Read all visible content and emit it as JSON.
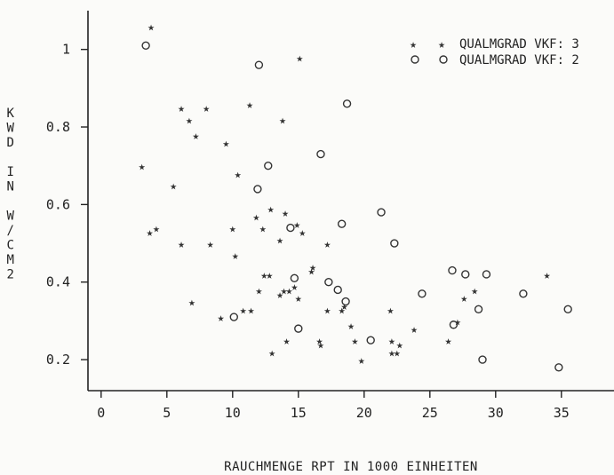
{
  "chart_data": {
    "type": "scatter",
    "xlabel": "RAUCHMENGE RPT IN 1000 EINHEITEN",
    "ylabel": [
      "K",
      "W",
      "D",
      "",
      "I",
      "N",
      "",
      "W",
      "/",
      "C",
      "M",
      "2"
    ],
    "xlim": [
      -1,
      39
    ],
    "ylim": [
      0.12,
      1.1
    ],
    "xticks": [
      0,
      5,
      10,
      15,
      20,
      25,
      30,
      35
    ],
    "xtick_labels": [
      "0",
      "5",
      "10",
      "15",
      "20",
      "25",
      "30",
      "35"
    ],
    "yticks": [
      0.2,
      0.4,
      0.6,
      0.8,
      1.0
    ],
    "ytick_labels": [
      "0.2",
      "0.4",
      "0.6",
      "0.8",
      "1"
    ],
    "grid": false,
    "legend_position": "top-right",
    "series": [
      {
        "name": "QUALMGRAD VKF: 3",
        "marker": "star",
        "points": [
          [
            3.8,
            1.06
          ],
          [
            3.1,
            0.7
          ],
          [
            3.7,
            0.53
          ],
          [
            4.2,
            0.54
          ],
          [
            5.5,
            0.65
          ],
          [
            6.1,
            0.85
          ],
          [
            6.1,
            0.5
          ],
          [
            6.7,
            0.82
          ],
          [
            6.9,
            0.35
          ],
          [
            7.2,
            0.78
          ],
          [
            8.0,
            0.85
          ],
          [
            8.3,
            0.5
          ],
          [
            9.1,
            0.31
          ],
          [
            9.5,
            0.76
          ],
          [
            10.0,
            0.54
          ],
          [
            10.2,
            0.47
          ],
          [
            10.4,
            0.68
          ],
          [
            10.8,
            0.33
          ],
          [
            11.3,
            0.86
          ],
          [
            11.4,
            0.33
          ],
          [
            11.8,
            0.57
          ],
          [
            12.0,
            0.38
          ],
          [
            12.3,
            0.54
          ],
          [
            12.4,
            0.42
          ],
          [
            12.8,
            0.42
          ],
          [
            12.9,
            0.59
          ],
          [
            13.0,
            0.22
          ],
          [
            13.6,
            0.51
          ],
          [
            13.6,
            0.37
          ],
          [
            13.8,
            0.82
          ],
          [
            13.9,
            0.38
          ],
          [
            14.0,
            0.58
          ],
          [
            14.1,
            0.25
          ],
          [
            14.3,
            0.38
          ],
          [
            14.7,
            0.39
          ],
          [
            14.9,
            0.55
          ],
          [
            15.0,
            0.36
          ],
          [
            15.1,
            0.98
          ],
          [
            15.3,
            0.53
          ],
          [
            16.0,
            0.43
          ],
          [
            16.1,
            0.44
          ],
          [
            16.6,
            0.25
          ],
          [
            16.7,
            0.24
          ],
          [
            17.2,
            0.33
          ],
          [
            17.2,
            0.5
          ],
          [
            18.3,
            0.33
          ],
          [
            18.5,
            0.34
          ],
          [
            19.0,
            0.29
          ],
          [
            19.3,
            0.25
          ],
          [
            19.8,
            0.2
          ],
          [
            22.0,
            0.33
          ],
          [
            22.1,
            0.25
          ],
          [
            22.1,
            0.22
          ],
          [
            22.5,
            0.22
          ],
          [
            22.7,
            0.24
          ],
          [
            23.8,
            0.28
          ],
          [
            26.4,
            0.25
          ],
          [
            27.1,
            0.3
          ],
          [
            27.6,
            0.36
          ],
          [
            28.4,
            0.38
          ],
          [
            33.9,
            0.42
          ]
        ]
      },
      {
        "name": "QUALMGRAD VKF: 2",
        "marker": "circle",
        "points": [
          [
            3.4,
            1.01
          ],
          [
            10.1,
            0.31
          ],
          [
            11.9,
            0.64
          ],
          [
            12.0,
            0.96
          ],
          [
            12.7,
            0.7
          ],
          [
            14.4,
            0.54
          ],
          [
            14.7,
            0.41
          ],
          [
            15.0,
            0.28
          ],
          [
            16.7,
            0.73
          ],
          [
            17.3,
            0.4
          ],
          [
            18.0,
            0.38
          ],
          [
            18.3,
            0.55
          ],
          [
            18.6,
            0.35
          ],
          [
            18.7,
            0.86
          ],
          [
            20.5,
            0.25
          ],
          [
            21.3,
            0.58
          ],
          [
            22.3,
            0.5
          ],
          [
            24.4,
            0.37
          ],
          [
            26.7,
            0.43
          ],
          [
            26.8,
            0.29
          ],
          [
            27.7,
            0.42
          ],
          [
            28.7,
            0.33
          ],
          [
            29.0,
            0.2
          ],
          [
            29.3,
            0.42
          ],
          [
            32.1,
            0.37
          ],
          [
            34.8,
            0.18
          ],
          [
            35.5,
            0.33
          ]
        ]
      }
    ]
  },
  "legend": {
    "items": [
      {
        "label": "QUALMGRAD VKF: 3",
        "marker": "star",
        "glyph": "★"
      },
      {
        "label": "QUALMGRAD VKF: 2",
        "marker": "circle"
      }
    ]
  }
}
